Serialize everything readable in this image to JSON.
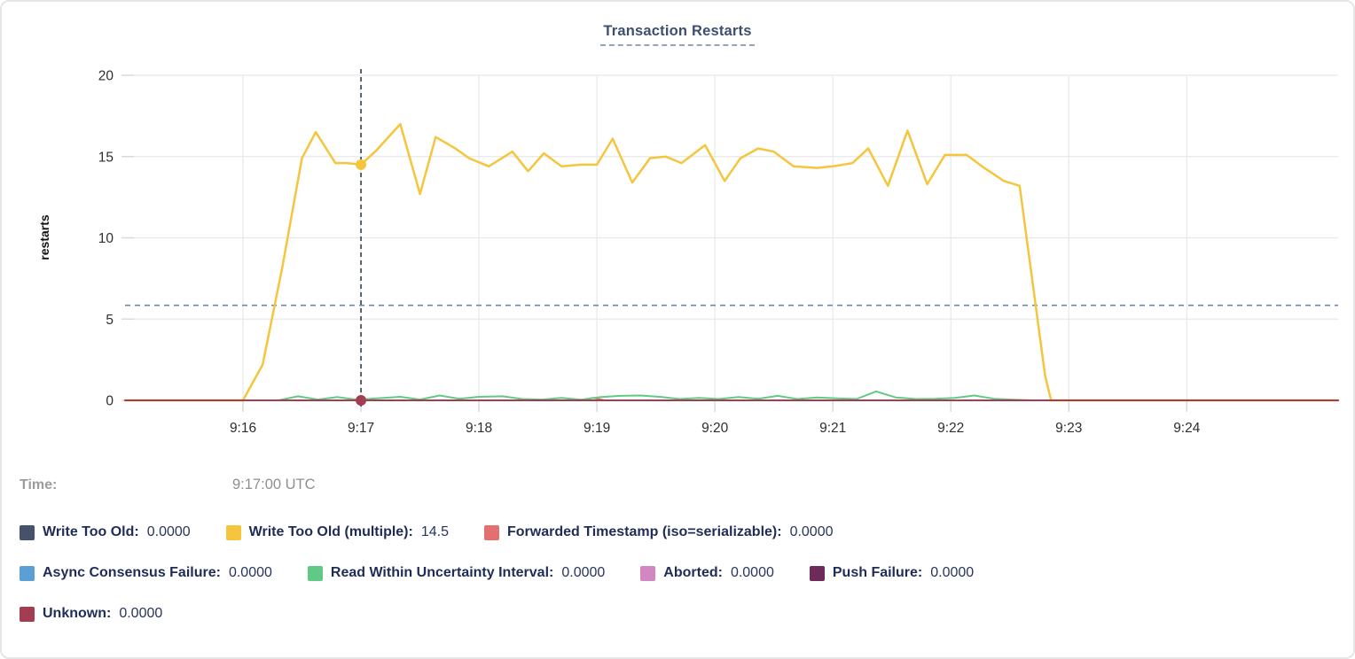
{
  "title": "Transaction Restarts",
  "tooltip": {
    "time_label": "Time:",
    "time_value": "9:17:00 UTC"
  },
  "legend": {
    "rows": [
      [
        {
          "label": "Write Too Old:",
          "value": "0.0000",
          "color": "#44526b"
        },
        {
          "label": "Write Too Old (multiple):",
          "value": "14.5",
          "color": "#f5c53d"
        },
        {
          "label": "Forwarded Timestamp (iso=serializable):",
          "value": "0.0000",
          "color": "#e3706e"
        }
      ],
      [
        {
          "label": "Async Consensus Failure:",
          "value": "0.0000",
          "color": "#5b9fd4"
        },
        {
          "label": "Read Within Uncertainty Interval:",
          "value": "0.0000",
          "color": "#60c985"
        },
        {
          "label": "Aborted:",
          "value": "0.0000",
          "color": "#d287c3"
        },
        {
          "label": "Push Failure:",
          "value": "0.0000",
          "color": "#6e2b59"
        }
      ],
      [
        {
          "label": "Unknown:",
          "value": "0.0000",
          "color": "#a23d52"
        }
      ]
    ]
  },
  "chart_data": {
    "type": "line",
    "title": "Transaction Restarts",
    "xlabel": "",
    "ylabel": "restarts",
    "ylim": [
      0,
      20
    ],
    "yticks": [
      0,
      5,
      10,
      15,
      20
    ],
    "grid": true,
    "x_start_time": "9:15:00",
    "x_domain_seconds": [
      0,
      617
    ],
    "xticks": [
      {
        "label": "9:16",
        "t": 60
      },
      {
        "label": "9:17",
        "t": 120
      },
      {
        "label": "9:18",
        "t": 180
      },
      {
        "label": "9:19",
        "t": 240
      },
      {
        "label": "9:20",
        "t": 300
      },
      {
        "label": "9:21",
        "t": 360
      },
      {
        "label": "9:22",
        "t": 420
      },
      {
        "label": "9:23",
        "t": 480
      },
      {
        "label": "9:24",
        "t": 540
      }
    ],
    "crosshair": {
      "time": "9:17:00 UTC",
      "t": 120,
      "hline_value": 5.85,
      "vline_color": "#3a4a57",
      "hline_color": "#6d87a8"
    },
    "markers": [
      {
        "series": "Write Too Old (multiple)",
        "t": 120,
        "value": 14.5,
        "color": "#f5c53d"
      },
      {
        "series": "Unknown",
        "t": 120,
        "value": 0,
        "color": "#a23d52"
      }
    ],
    "draw_order": [
      0,
      3,
      5,
      6,
      2,
      4,
      1,
      7
    ],
    "series": [
      {
        "name": "Write Too Old",
        "color": "#44526b",
        "width": 2,
        "points": [
          [
            0,
            0
          ],
          [
            617,
            0
          ]
        ]
      },
      {
        "name": "Write Too Old (multiple)",
        "color": "#f5c53d",
        "width": 2.5,
        "points": [
          [
            0,
            0
          ],
          [
            60,
            0
          ],
          [
            70,
            2.2
          ],
          [
            80,
            8.2
          ],
          [
            90,
            14.9
          ],
          [
            97,
            16.5
          ],
          [
            107,
            14.6
          ],
          [
            113,
            14.6
          ],
          [
            120,
            14.5
          ],
          [
            128,
            15.4
          ],
          [
            140,
            17.0
          ],
          [
            150,
            12.7
          ],
          [
            158,
            16.2
          ],
          [
            168,
            15.5
          ],
          [
            175,
            14.9
          ],
          [
            185,
            14.4
          ],
          [
            197,
            15.3
          ],
          [
            205,
            14.1
          ],
          [
            213,
            15.2
          ],
          [
            222,
            14.4
          ],
          [
            232,
            14.5
          ],
          [
            240,
            14.5
          ],
          [
            248,
            16.1
          ],
          [
            258,
            13.4
          ],
          [
            267,
            14.9
          ],
          [
            275,
            15.0
          ],
          [
            283,
            14.6
          ],
          [
            295,
            15.7
          ],
          [
            305,
            13.5
          ],
          [
            313,
            14.9
          ],
          [
            322,
            15.5
          ],
          [
            330,
            15.3
          ],
          [
            340,
            14.4
          ],
          [
            352,
            14.3
          ],
          [
            360,
            14.4
          ],
          [
            370,
            14.6
          ],
          [
            378,
            15.5
          ],
          [
            388,
            13.2
          ],
          [
            398,
            16.6
          ],
          [
            408,
            13.3
          ],
          [
            417,
            15.1
          ],
          [
            428,
            15.1
          ],
          [
            437,
            14.3
          ],
          [
            447,
            13.5
          ],
          [
            455,
            13.2
          ],
          [
            468,
            1.5
          ],
          [
            471,
            0
          ],
          [
            617,
            0
          ]
        ]
      },
      {
        "name": "Forwarded Timestamp (iso=serializable)",
        "color": "#e3706e",
        "width": 2,
        "points": [
          [
            0,
            0
          ],
          [
            232,
            0
          ],
          [
            238,
            0.15
          ],
          [
            244,
            0
          ],
          [
            617,
            0
          ]
        ]
      },
      {
        "name": "Async Consensus Failure",
        "color": "#5b9fd4",
        "width": 2,
        "points": [
          [
            0,
            0
          ],
          [
            617,
            0
          ]
        ]
      },
      {
        "name": "Read Within Uncertainty Interval",
        "color": "#60c985",
        "width": 2,
        "points": [
          [
            0,
            0
          ],
          [
            78,
            0
          ],
          [
            88,
            0.25
          ],
          [
            98,
            0.05
          ],
          [
            108,
            0.2
          ],
          [
            118,
            0.04
          ],
          [
            128,
            0.12
          ],
          [
            140,
            0.22
          ],
          [
            150,
            0.05
          ],
          [
            160,
            0.3
          ],
          [
            170,
            0.1
          ],
          [
            180,
            0.22
          ],
          [
            192,
            0.25
          ],
          [
            202,
            0.08
          ],
          [
            212,
            0.05
          ],
          [
            222,
            0.15
          ],
          [
            232,
            0.04
          ],
          [
            242,
            0.2
          ],
          [
            252,
            0.28
          ],
          [
            262,
            0.3
          ],
          [
            272,
            0.22
          ],
          [
            282,
            0.08
          ],
          [
            292,
            0.15
          ],
          [
            302,
            0.08
          ],
          [
            312,
            0.2
          ],
          [
            322,
            0.1
          ],
          [
            332,
            0.28
          ],
          [
            342,
            0.08
          ],
          [
            352,
            0.18
          ],
          [
            362,
            0.12
          ],
          [
            372,
            0.08
          ],
          [
            382,
            0.55
          ],
          [
            392,
            0.18
          ],
          [
            402,
            0.08
          ],
          [
            412,
            0.1
          ],
          [
            422,
            0.15
          ],
          [
            432,
            0.3
          ],
          [
            442,
            0.1
          ],
          [
            452,
            0.04
          ],
          [
            462,
            0
          ],
          [
            617,
            0
          ]
        ]
      },
      {
        "name": "Aborted",
        "color": "#d287c3",
        "width": 2,
        "points": [
          [
            0,
            0
          ],
          [
            617,
            0
          ]
        ]
      },
      {
        "name": "Push Failure",
        "color": "#6e2b59",
        "width": 2,
        "points": [
          [
            0,
            0
          ],
          [
            617,
            0
          ]
        ]
      },
      {
        "name": "Unknown",
        "color": "#a23d52",
        "width": 2,
        "points": [
          [
            0,
            0
          ],
          [
            617,
            0
          ]
        ]
      }
    ]
  }
}
